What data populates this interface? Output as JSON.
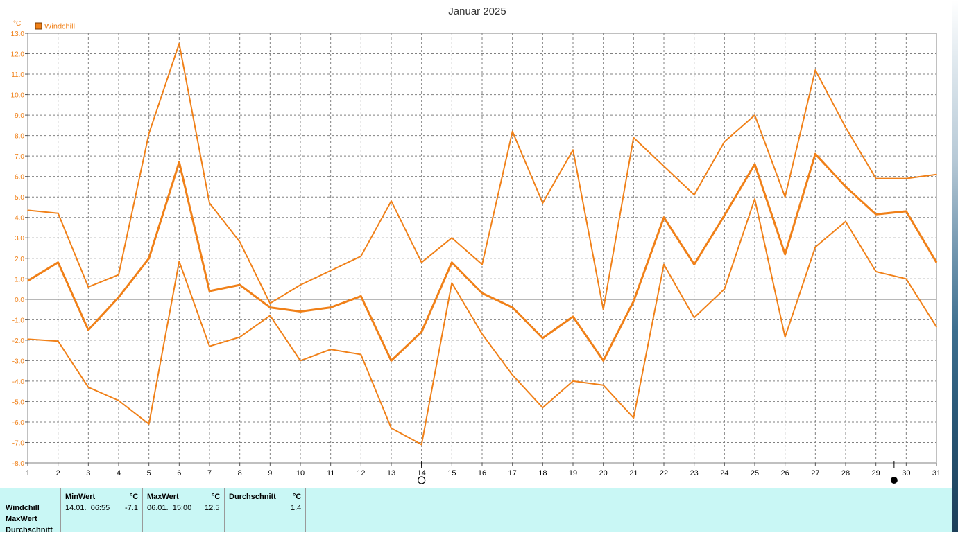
{
  "colors": {
    "series": "#f08018",
    "axis_text": "#f08018",
    "grid": "#808080",
    "panel_bg": "#c9f7f5"
  },
  "chart_data": {
    "type": "line",
    "title": "Januar 2025",
    "ylabel": "°C",
    "legend": {
      "label": "Windchill",
      "placement": "top-left"
    },
    "ylim": [
      -8.0,
      13.0
    ],
    "xlim": [
      1,
      31
    ],
    "grid": true,
    "x": [
      1,
      2,
      3,
      4,
      5,
      6,
      7,
      8,
      9,
      10,
      11,
      12,
      13,
      14,
      15,
      16,
      17,
      18,
      19,
      20,
      21,
      22,
      23,
      24,
      25,
      26,
      27,
      28,
      29,
      30,
      31
    ],
    "y_ticks": [
      "13.0",
      "12.0",
      "11.0",
      "10.0",
      "9.0",
      "8.0",
      "7.0",
      "6.0",
      "5.0",
      "4.0",
      "3.0",
      "2.0",
      "1.0",
      "0.0",
      "-1.0",
      "-2.0",
      "-3.0",
      "-4.0",
      "-5.0",
      "-6.0",
      "-7.0",
      "-8.0"
    ],
    "series": [
      {
        "role": "max",
        "values": [
          4.35,
          4.2,
          0.6,
          1.2,
          8.1,
          12.5,
          4.7,
          2.8,
          -0.2,
          0.7,
          1.4,
          2.1,
          4.8,
          1.8,
          3.0,
          1.7,
          8.2,
          4.7,
          7.3,
          -0.5,
          7.9,
          6.5,
          5.1,
          7.7,
          9.0,
          5.0,
          11.2,
          8.4,
          5.9,
          5.9,
          6.1
        ]
      },
      {
        "role": "avg",
        "values": [
          0.9,
          1.8,
          -1.5,
          0.1,
          2.0,
          6.7,
          0.4,
          0.7,
          -0.4,
          -0.6,
          -0.4,
          0.15,
          -3.0,
          -1.6,
          1.8,
          0.3,
          -0.4,
          -1.9,
          -0.85,
          -3.0,
          -0.1,
          4.0,
          1.7,
          4.1,
          6.6,
          2.2,
          7.1,
          5.5,
          4.15,
          4.3,
          1.8
        ]
      },
      {
        "role": "min",
        "values": [
          -1.95,
          -2.05,
          -4.3,
          -4.95,
          -6.1,
          1.85,
          -2.3,
          -1.85,
          -0.8,
          -3.0,
          -2.45,
          -2.7,
          -6.3,
          -7.1,
          0.8,
          -1.7,
          -3.7,
          -5.3,
          -4.0,
          -4.2,
          -5.8,
          1.7,
          -0.9,
          0.5,
          4.9,
          -1.85,
          2.55,
          3.8,
          1.35,
          1.0,
          -1.35
        ]
      }
    ],
    "moon_markers": [
      {
        "day": 14,
        "phase": "full-moon"
      },
      {
        "day": 29.6,
        "phase": "new-moon"
      }
    ]
  },
  "stats": {
    "rows": [
      "Windchill",
      "MaxWert",
      "Durchschnitt"
    ],
    "min": {
      "header": "MinWert",
      "unit": "°C",
      "time": "14.01.  06:55",
      "value": "-7.1"
    },
    "max": {
      "header": "MaxWert",
      "unit": "°C",
      "time": "06.01.  15:00",
      "value": "12.5"
    },
    "avg": {
      "header": "Durchschnitt",
      "unit": "°C",
      "value": "1.4"
    }
  }
}
